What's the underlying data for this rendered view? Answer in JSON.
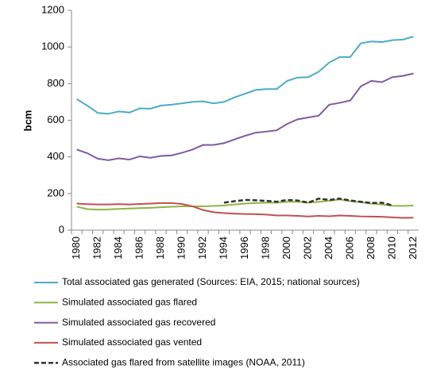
{
  "chart_data": {
    "type": "line",
    "ylabel": "bcm",
    "categories": [
      "1980",
      null,
      "1982",
      null,
      "1984",
      null,
      "1986",
      null,
      "1988",
      null,
      "1990",
      null,
      "1992",
      null,
      "1994",
      null,
      "1996",
      null,
      "1998",
      null,
      "2000",
      null,
      "2002",
      null,
      "2004",
      null,
      "2006",
      null,
      "2008",
      null,
      "2010",
      null,
      "2012"
    ],
    "ylim": [
      0,
      1200
    ],
    "yticks": [
      0,
      200,
      400,
      600,
      800,
      1000,
      1200
    ],
    "series": [
      {
        "name": "Total associated gas generated (Sources: EIA, 2015; national sources)",
        "color": "#4bacc6",
        "dashed": false,
        "values": [
          715,
          680,
          640,
          635,
          648,
          642,
          665,
          663,
          680,
          685,
          692,
          700,
          703,
          692,
          700,
          725,
          745,
          765,
          770,
          770,
          815,
          833,
          835,
          865,
          915,
          945,
          945,
          1020,
          1030,
          1027,
          1037,
          1040,
          1057
        ]
      },
      {
        "name": "Simulated associated gas flared",
        "color": "#8db546",
        "dashed": false,
        "values": [
          128,
          115,
          112,
          113,
          116,
          118,
          120,
          122,
          125,
          128,
          130,
          130,
          130,
          132,
          135,
          140,
          145,
          148,
          150,
          150,
          155,
          155,
          150,
          155,
          160,
          168,
          158,
          152,
          145,
          140,
          133,
          132,
          135
        ]
      },
      {
        "name": "Simulated associated gas recovered",
        "color": "#7f5aa2",
        "dashed": false,
        "values": [
          440,
          420,
          390,
          382,
          392,
          385,
          403,
          395,
          405,
          408,
          422,
          440,
          465,
          465,
          475,
          495,
          515,
          532,
          538,
          545,
          580,
          605,
          615,
          625,
          685,
          695,
          708,
          785,
          815,
          808,
          835,
          842,
          855
        ]
      },
      {
        "name": "Simulated associated gas vented",
        "color": "#c0504d",
        "dashed": false,
        "values": [
          145,
          142,
          140,
          140,
          142,
          140,
          143,
          145,
          148,
          148,
          143,
          130,
          110,
          98,
          93,
          90,
          88,
          87,
          85,
          80,
          80,
          78,
          75,
          78,
          76,
          80,
          78,
          75,
          74,
          73,
          70,
          67,
          68
        ]
      },
      {
        "name": "Associated gas flared from satellite images (NOAA, 2011)",
        "color": "#333333",
        "dashed": true,
        "values": [
          null,
          null,
          null,
          null,
          null,
          null,
          null,
          null,
          null,
          null,
          null,
          null,
          null,
          null,
          150,
          158,
          165,
          163,
          160,
          155,
          165,
          162,
          150,
          172,
          165,
          172,
          162,
          155,
          148,
          150,
          135,
          null,
          null
        ]
      }
    ]
  }
}
